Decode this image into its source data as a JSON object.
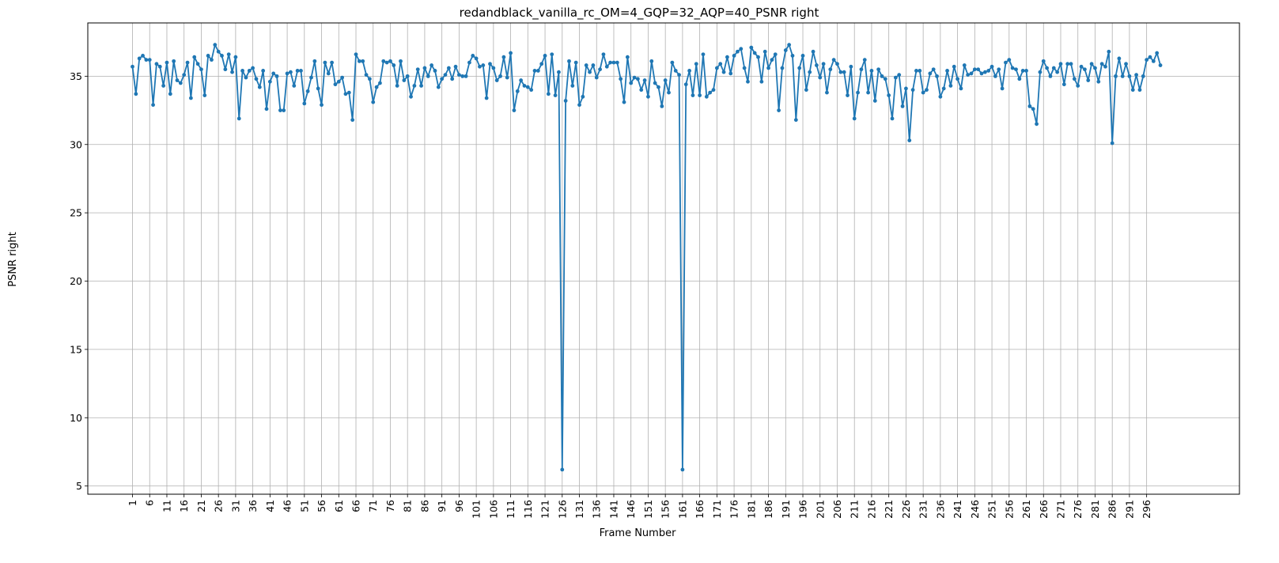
{
  "chart_data": {
    "type": "line",
    "title": "redandblack_vanilla_rc_OM=4_GQP=32_AQP=40_PSNR right",
    "xlabel": "Frame Number",
    "ylabel": "PSNR right",
    "xlim": [
      -12,
      323
    ],
    "ylim": [
      4.4,
      38.9
    ],
    "grid": true,
    "x_ticks": [
      1,
      6,
      11,
      16,
      21,
      26,
      31,
      36,
      41,
      46,
      51,
      56,
      61,
      66,
      71,
      76,
      81,
      86,
      91,
      96,
      101,
      106,
      111,
      116,
      121,
      126,
      131,
      136,
      141,
      146,
      151,
      156,
      161,
      166,
      171,
      176,
      181,
      186,
      191,
      196,
      201,
      206,
      211,
      216,
      221,
      226,
      231,
      236,
      241,
      246,
      251,
      256,
      261,
      266,
      271,
      276,
      281,
      286,
      291,
      296
    ],
    "y_ticks": [
      5,
      10,
      15,
      20,
      25,
      30,
      35
    ],
    "series": [
      {
        "color": "#1f77b4",
        "x_start": 1,
        "values": [
          35.7,
          33.7,
          36.3,
          36.5,
          36.2,
          36.2,
          32.9,
          35.9,
          35.7,
          34.3,
          36.0,
          33.7,
          36.1,
          34.7,
          34.5,
          35.1,
          36.0,
          33.4,
          36.4,
          35.9,
          35.5,
          33.6,
          36.5,
          36.2,
          37.3,
          36.8,
          36.5,
          35.5,
          36.6,
          35.3,
          36.4,
          31.9,
          35.4,
          34.9,
          35.4,
          35.6,
          34.8,
          34.2,
          35.4,
          32.6,
          34.6,
          35.2,
          35.0,
          32.5,
          32.5,
          35.2,
          35.3,
          34.3,
          35.4,
          35.4,
          33.0,
          33.9,
          34.9,
          36.1,
          34.1,
          32.9,
          36.0,
          35.2,
          36.0,
          34.4,
          34.6,
          34.9,
          33.7,
          33.8,
          31.8,
          36.6,
          36.1,
          36.1,
          35.1,
          34.8,
          33.1,
          34.2,
          34.5,
          36.1,
          36.0,
          36.1,
          35.8,
          34.3,
          36.1,
          34.7,
          35.0,
          33.5,
          34.3,
          35.5,
          34.3,
          35.6,
          35.0,
          35.8,
          35.4,
          34.2,
          34.8,
          35.1,
          35.6,
          34.8,
          35.7,
          35.1,
          35.0,
          35.0,
          36.0,
          36.5,
          36.3,
          35.7,
          35.8,
          33.4,
          35.9,
          35.6,
          34.7,
          35.0,
          36.4,
          34.9,
          36.7,
          32.5,
          33.9,
          34.7,
          34.3,
          34.2,
          34.0,
          35.4,
          35.4,
          35.9,
          36.5,
          33.7,
          36.6,
          33.6,
          35.3,
          6.2,
          33.2,
          36.1,
          34.3,
          36.0,
          32.9,
          33.5,
          35.8,
          35.3,
          35.8,
          34.9,
          35.5,
          36.6,
          35.7,
          36.0,
          36.0,
          36.0,
          34.8,
          33.1,
          36.4,
          34.5,
          34.9,
          34.8,
          34.0,
          34.7,
          33.5,
          36.1,
          34.5,
          34.2,
          32.8,
          34.7,
          33.8,
          36.0,
          35.4,
          35.1,
          6.2,
          34.4,
          35.4,
          33.6,
          35.9,
          33.6,
          36.6,
          33.5,
          33.8,
          34.0,
          35.6,
          35.9,
          35.3,
          36.4,
          35.2,
          36.5,
          36.8,
          37.0,
          35.6,
          34.6,
          37.1,
          36.7,
          36.4,
          34.6,
          36.8,
          35.6,
          36.2,
          36.6,
          32.5,
          35.6,
          36.9,
          37.3,
          36.5,
          31.8,
          35.6,
          36.5,
          34.0,
          35.3,
          36.8,
          35.8,
          34.9,
          35.9,
          33.8,
          35.5,
          36.2,
          35.9,
          35.3,
          35.3,
          33.6,
          35.7,
          31.9,
          33.8,
          35.5,
          36.2,
          33.8,
          35.4,
          33.2,
          35.5,
          35.0,
          34.8,
          33.6,
          31.9,
          34.9,
          35.1,
          32.8,
          34.1,
          30.3,
          34.0,
          35.4,
          35.4,
          33.8,
          34.0,
          35.2,
          35.5,
          35.0,
          33.5,
          34.1,
          35.4,
          34.3,
          35.7,
          34.8,
          34.1,
          35.8,
          35.1,
          35.2,
          35.5,
          35.5,
          35.2,
          35.3,
          35.4,
          35.7,
          35.0,
          35.5,
          34.1,
          36.0,
          36.2,
          35.6,
          35.5,
          34.8,
          35.4,
          35.4,
          32.8,
          32.6,
          31.5,
          35.3,
          36.1,
          35.6,
          35.0,
          35.6,
          35.3,
          35.9,
          34.4,
          35.9,
          35.9,
          34.8,
          34.3,
          35.7,
          35.5,
          34.7,
          35.9,
          35.6,
          34.6,
          35.9,
          35.7,
          36.8,
          30.1,
          35.0,
          36.3,
          35.0,
          35.9,
          35.0,
          34.0,
          35.1,
          34.0,
          35.0,
          36.2,
          36.4,
          36.1,
          36.7,
          35.8
        ]
      }
    ]
  }
}
